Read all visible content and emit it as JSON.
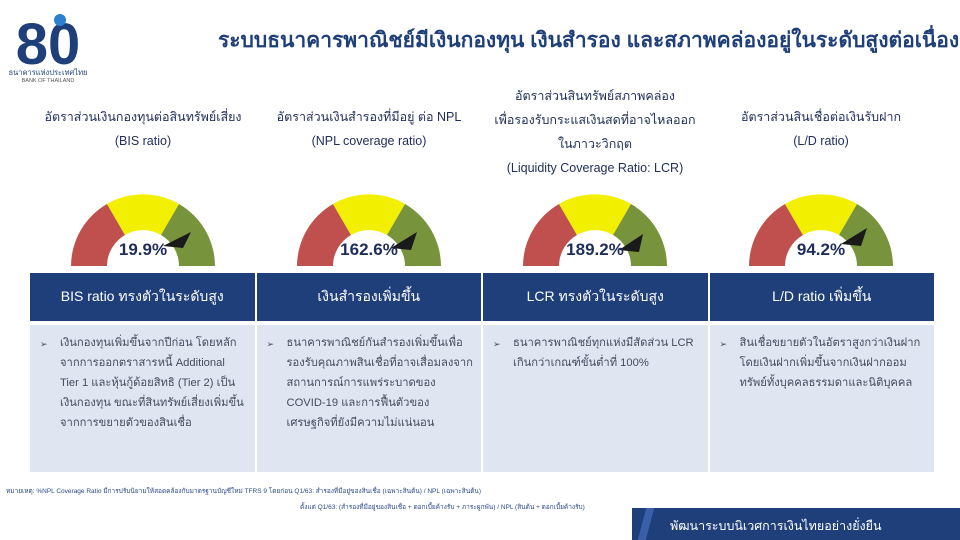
{
  "logo": {
    "numeral": "80",
    "caption_th": "ธนาคารแห่งประเทศไทย",
    "caption_en": "BANK OF THAILAND"
  },
  "title": "ระบบธนาคารพาณิชย์มีเงินกองทุน เงินสำรอง และสภาพคล่องอยู่ในระดับสูงต่อเนื่อง",
  "colors": {
    "brand": "#1f3f7a",
    "gauge_red": "#c0504d",
    "gauge_yellow": "#f2f000",
    "gauge_green": "#77933c",
    "panel": "#dfe6f2"
  },
  "indicators": [
    {
      "title_lines": [
        "อัตราส่วนเงินกองทุนต่อสินทรัพย์เสี่ยง",
        "(BIS ratio)"
      ],
      "value": "19.9%",
      "header": "BIS ratio ทรงตัวในระดับสูง",
      "bullet": "เงินกองทุนเพิ่มขึ้นจากปีก่อน โดยหลักจากการออกตราสารหนี้ Additional Tier 1 และหุ้นกู้ด้อยสิทธิ (Tier 2) เป็นเงินกองทุน ขณะที่สินทรัพย์เสี่ยงเพิ่มขึ้นจากการขยายตัวของสินเชื่อ"
    },
    {
      "title_lines": [
        "อัตราส่วนเงินสำรองที่มีอยู่ ต่อ NPL",
        "(NPL coverage ratio)"
      ],
      "value": "162.6%",
      "header": "เงินสำรองเพิ่มขึ้น",
      "bullet": "ธนาคารพาณิชย์กันสำรองเพิ่มขึ้นเพื่อรองรับคุณภาพสินเชื่อที่อาจเสื่อมลงจากสถานการณ์การแพร่ระบาดของ COVID-19 และการฟื้นตัวของเศรษฐกิจที่ยังมีความไม่แน่นอน"
    },
    {
      "title_lines": [
        "อัตราส่วนสินทรัพย์สภาพคล่อง",
        "เพื่อรองรับกระแสเงินสดที่อาจไหลออก",
        "ในภาวะวิกฤต",
        "(Liquidity Coverage Ratio: LCR)"
      ],
      "value": "189.2%",
      "header": "LCR ทรงตัวในระดับสูง",
      "bullet": "ธนาคารพาณิชย์ทุกแห่งมีสัดส่วน LCR เกินกว่าเกณฑ์ขั้นต่ำที่ 100%"
    },
    {
      "title_lines": [
        "อัตราส่วนสินเชื่อต่อเงินรับฝาก",
        "(L/D ratio)"
      ],
      "value": "94.2%",
      "header": "L/D ratio เพิ่มขึ้น",
      "bullet": "สินเชื่อขยายตัวในอัตราสูงกว่าเงินฝาก โดยเงินฝากเพิ่มขึ้นจากเงินฝากออมทรัพย์ทั้งบุคคลธรรมดาและนิติบุคคล"
    }
  ],
  "footnote": {
    "line1": "หมายเหตุ: %NPL Coverage Ratio มีการปรับนิยามให้สอดคล้องกับมาตรฐานบัญชีใหม่ TFRS 9 โดยก่อน Q1/63: สำรองที่มีอยู่ของสินเชื่อ (เฉพาะสินต้น) / NPL (เฉพาะสินต้น)",
    "line2": "ตั้งแต่ Q1/63: (สำรองที่มีอยู่ของสินเชื่อ + ดอกเบี้ยค้างรับ + ภาระผูกพัน) / NPL (สินต้น + ดอกเบี้ยค้างรับ)"
  },
  "bottom_bar": "พัฒนาระบบนิเวศการเงินไทยอย่างยั่งยืน"
}
